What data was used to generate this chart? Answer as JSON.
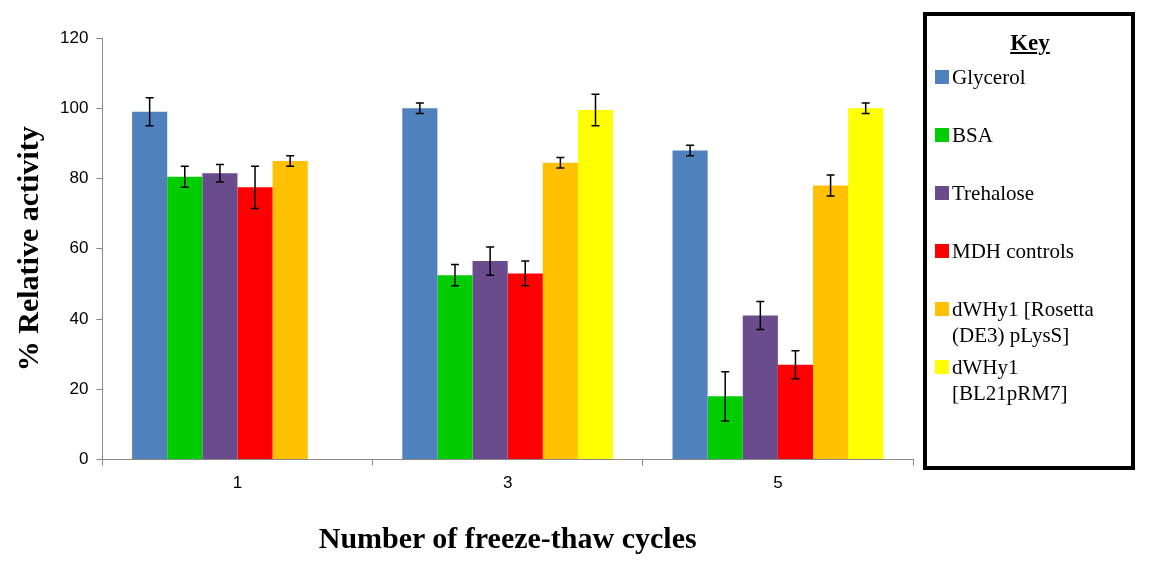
{
  "chart_data": {
    "type": "bar",
    "xlabel": "Number of freeze-thaw cycles",
    "ylabel": "% Relative activity",
    "legend_title": "Key",
    "legend": "right",
    "grid": false,
    "categories": [
      "1",
      "3",
      "5"
    ],
    "ylim": [
      0,
      120
    ],
    "yticks": [
      0,
      20,
      40,
      60,
      80,
      100,
      120
    ],
    "series": [
      {
        "name": "Glycerol",
        "color": "#4f81bd",
        "values": [
          99,
          100,
          88
        ],
        "errors": [
          4,
          1.5,
          1.5
        ]
      },
      {
        "name": "BSA",
        "color": "#00cc00",
        "values": [
          80.5,
          52.5,
          18
        ],
        "errors": [
          3,
          3,
          7
        ]
      },
      {
        "name": "Trehalose",
        "color": "#6a4c8c",
        "values": [
          81.5,
          56.5,
          41
        ],
        "errors": [
          2.5,
          4,
          4
        ]
      },
      {
        "name": "MDH controls",
        "color": "#ff0000",
        "values": [
          77.5,
          53,
          27
        ],
        "errors": [
          6,
          3.5,
          4
        ]
      },
      {
        "name": "dWHy1 [Rosetta (DE3) pLysS]",
        "color": "#ffc000",
        "values": [
          85,
          84.5,
          78
        ],
        "errors": [
          1.5,
          1.5,
          3
        ]
      },
      {
        "name": "dWHy1 [BL21pRM7]",
        "color": "#ffff00",
        "values": [
          null,
          99.5,
          100
        ],
        "errors": [
          null,
          4.5,
          1.5
        ]
      }
    ]
  }
}
